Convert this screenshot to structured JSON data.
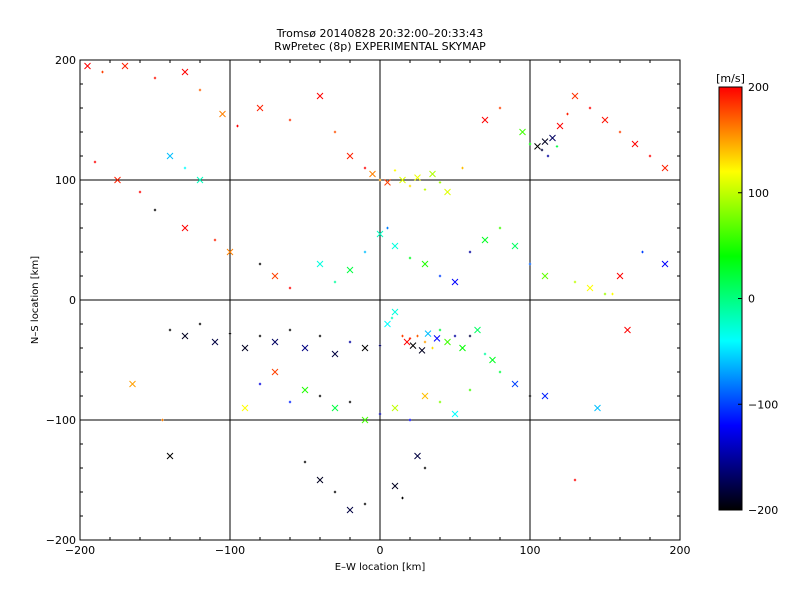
{
  "title": {
    "line1": "Tromsø 20140828 20:32:00–20:33:43",
    "line2": "RwPretec (8p) EXPERIMENTAL SKYMAP"
  },
  "chart_data": {
    "type": "scatter",
    "title": "Tromsø 20140828 20:32:00–20:33:43",
    "subtitle": "RwPretec (8p) EXPERIMENTAL SKYMAP",
    "xlabel": "E–W location [km]",
    "ylabel": "N–S location [km]",
    "xlim": [
      -200,
      200
    ],
    "ylim": [
      -200,
      200
    ],
    "xticks": [
      -200,
      -100,
      0,
      100,
      200
    ],
    "yticks": [
      -200,
      -100,
      0,
      100,
      200
    ],
    "x_tick_labels": [
      "−200",
      "−100",
      "0",
      "100",
      "200"
    ],
    "y_tick_labels": [
      "−200",
      "−100",
      "0",
      "100",
      "200"
    ],
    "grid": true,
    "colorbar": {
      "label": "[m/s]",
      "range": [
        -200,
        200
      ],
      "ticks": [
        200,
        100,
        0,
        -100,
        -200
      ],
      "tick_labels": [
        "200",
        "100",
        "0",
        "−100",
        "−200"
      ],
      "colors": [
        "#000000",
        "#0000ff",
        "#00ffff",
        "#00ff00",
        "#ffff00",
        "#ff0000"
      ]
    },
    "markers": [
      "x",
      "+"
    ],
    "series": [
      {
        "points": [
          [
            -195,
            195,
            200
          ],
          [
            -185,
            190,
            180
          ],
          [
            -170,
            195,
            190
          ],
          [
            -150,
            185,
            195
          ],
          [
            -130,
            190,
            200
          ],
          [
            -120,
            175,
            170
          ],
          [
            -105,
            155,
            160
          ],
          [
            -95,
            145,
            200
          ],
          [
            -80,
            160,
            190
          ],
          [
            -60,
            150,
            185
          ],
          [
            -40,
            170,
            200
          ],
          [
            -30,
            140,
            175
          ],
          [
            -20,
            120,
            190
          ],
          [
            -10,
            110,
            200
          ],
          [
            -5,
            105,
            160
          ],
          [
            0,
            100,
            150
          ],
          [
            5,
            98,
            180
          ],
          [
            10,
            108,
            120
          ],
          [
            15,
            100,
            110
          ],
          [
            20,
            95,
            130
          ],
          [
            25,
            102,
            115
          ],
          [
            30,
            92,
            100
          ],
          [
            35,
            105,
            95
          ],
          [
            40,
            98,
            90
          ],
          [
            45,
            90,
            110
          ],
          [
            55,
            110,
            140
          ],
          [
            70,
            150,
            200
          ],
          [
            80,
            160,
            180
          ],
          [
            95,
            140,
            60
          ],
          [
            100,
            130,
            40
          ],
          [
            105,
            128,
            -200
          ],
          [
            108,
            125,
            -180
          ],
          [
            110,
            132,
            -190
          ],
          [
            112,
            120,
            -150
          ],
          [
            115,
            135,
            -170
          ],
          [
            118,
            128,
            20
          ],
          [
            120,
            145,
            200
          ],
          [
            125,
            155,
            190
          ],
          [
            130,
            170,
            185
          ],
          [
            140,
            160,
            200
          ],
          [
            150,
            150,
            195
          ],
          [
            160,
            140,
            180
          ],
          [
            170,
            130,
            200
          ],
          [
            180,
            120,
            200
          ],
          [
            190,
            110,
            190
          ],
          [
            -190,
            115,
            200
          ],
          [
            -175,
            100,
            190
          ],
          [
            -160,
            90,
            200
          ],
          [
            -140,
            120,
            -60
          ],
          [
            -130,
            110,
            -40
          ],
          [
            -120,
            100,
            -20
          ],
          [
            -150,
            75,
            -200
          ],
          [
            -130,
            60,
            200
          ],
          [
            -110,
            50,
            190
          ],
          [
            -100,
            40,
            160
          ],
          [
            -80,
            30,
            -200
          ],
          [
            -70,
            20,
            180
          ],
          [
            -60,
            10,
            200
          ],
          [
            -40,
            30,
            -30
          ],
          [
            -30,
            15,
            -10
          ],
          [
            -20,
            25,
            20
          ],
          [
            -10,
            40,
            -60
          ],
          [
            0,
            55,
            -20
          ],
          [
            5,
            60,
            -80
          ],
          [
            10,
            45,
            -30
          ],
          [
            20,
            35,
            30
          ],
          [
            30,
            30,
            50
          ],
          [
            40,
            20,
            -100
          ],
          [
            50,
            15,
            -120
          ],
          [
            60,
            40,
            -150
          ],
          [
            70,
            50,
            30
          ],
          [
            80,
            60,
            60
          ],
          [
            90,
            45,
            10
          ],
          [
            100,
            30,
            -90
          ],
          [
            110,
            20,
            70
          ],
          [
            130,
            15,
            100
          ],
          [
            140,
            10,
            120
          ],
          [
            150,
            5,
            90
          ],
          [
            160,
            20,
            200
          ],
          [
            175,
            40,
            -100
          ],
          [
            190,
            30,
            -120
          ],
          [
            -140,
            -25,
            -200
          ],
          [
            -130,
            -30,
            -190
          ],
          [
            -120,
            -20,
            -200
          ],
          [
            -110,
            -35,
            -180
          ],
          [
            -100,
            -28,
            -200
          ],
          [
            -90,
            -40,
            -190
          ],
          [
            -80,
            -30,
            -200
          ],
          [
            -70,
            -35,
            -170
          ],
          [
            -60,
            -25,
            -200
          ],
          [
            -50,
            -40,
            -160
          ],
          [
            -40,
            -30,
            -200
          ],
          [
            -30,
            -45,
            -180
          ],
          [
            -20,
            -35,
            -150
          ],
          [
            -10,
            -40,
            -200
          ],
          [
            0,
            -38,
            -170
          ],
          [
            5,
            -20,
            -40
          ],
          [
            8,
            -15,
            -20
          ],
          [
            10,
            -10,
            -30
          ],
          [
            15,
            -30,
            180
          ],
          [
            18,
            -35,
            200
          ],
          [
            20,
            -32,
            190
          ],
          [
            22,
            -38,
            -200
          ],
          [
            25,
            -30,
            170
          ],
          [
            28,
            -42,
            -190
          ],
          [
            30,
            -35,
            150
          ],
          [
            32,
            -28,
            -60
          ],
          [
            35,
            -40,
            130
          ],
          [
            38,
            -32,
            -120
          ],
          [
            40,
            -25,
            20
          ],
          [
            45,
            -35,
            60
          ],
          [
            50,
            -30,
            -150
          ],
          [
            55,
            -40,
            40
          ],
          [
            60,
            -30,
            -180
          ],
          [
            65,
            -25,
            10
          ],
          [
            70,
            -45,
            -10
          ],
          [
            75,
            -50,
            30
          ],
          [
            80,
            -60,
            20
          ],
          [
            90,
            -70,
            -100
          ],
          [
            100,
            -80,
            -200
          ],
          [
            -90,
            -90,
            120
          ],
          [
            -80,
            -70,
            -130
          ],
          [
            -70,
            -60,
            180
          ],
          [
            -60,
            -85,
            -110
          ],
          [
            -50,
            -75,
            50
          ],
          [
            -40,
            -80,
            -200
          ],
          [
            -30,
            -90,
            20
          ],
          [
            -20,
            -85,
            -200
          ],
          [
            -10,
            -100,
            60
          ],
          [
            0,
            -95,
            -150
          ],
          [
            10,
            -90,
            100
          ],
          [
            20,
            -100,
            -120
          ],
          [
            30,
            -80,
            140
          ],
          [
            40,
            -85,
            80
          ],
          [
            50,
            -95,
            -40
          ],
          [
            60,
            -75,
            60
          ],
          [
            -165,
            -70,
            150
          ],
          [
            -145,
            -100,
            160
          ],
          [
            -140,
            -130,
            -200
          ],
          [
            -50,
            -135,
            -200
          ],
          [
            -40,
            -150,
            -190
          ],
          [
            -30,
            -160,
            -200
          ],
          [
            -20,
            -175,
            -180
          ],
          [
            -10,
            -170,
            -200
          ],
          [
            10,
            -155,
            -190
          ],
          [
            15,
            -165,
            -200
          ],
          [
            25,
            -130,
            -180
          ],
          [
            30,
            -140,
            -200
          ],
          [
            110,
            -80,
            -110
          ],
          [
            130,
            -150,
            200
          ],
          [
            145,
            -90,
            -60
          ],
          [
            155,
            5,
            120
          ],
          [
            165,
            -25,
            200
          ]
        ]
      }
    ]
  }
}
